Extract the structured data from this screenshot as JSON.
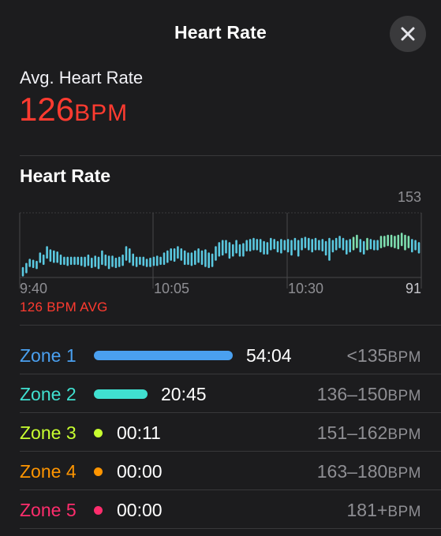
{
  "header": {
    "title": "Heart Rate",
    "close_icon": "close-icon"
  },
  "summary": {
    "avg_label": "Avg. Heart Rate",
    "avg_value": "126",
    "avg_unit": "BPM",
    "accent_color": "#ff3b30"
  },
  "chart_section": {
    "title": "Heart Rate",
    "avg_note": "126 BPM AVG"
  },
  "chart_data": {
    "type": "bar",
    "title": "",
    "xlabel": "",
    "ylabel": "",
    "ylim": [
      91,
      153
    ],
    "y_tick_labels": [
      "153",
      "91"
    ],
    "x_tick_labels": [
      "9:40",
      "10:05",
      "10:30"
    ],
    "grid": true,
    "series": [
      {
        "color": "#5ac8e0",
        "ranges": [
          [
            93,
            100
          ],
          [
            96,
            104
          ],
          [
            102,
            108
          ],
          [
            101,
            107
          ],
          [
            100,
            106
          ],
          [
            106,
            114
          ],
          [
            104,
            112
          ],
          [
            110,
            120
          ],
          [
            107,
            117
          ],
          [
            106,
            116
          ],
          [
            106,
            115
          ],
          [
            104,
            112
          ],
          [
            104,
            110
          ],
          [
            103,
            110
          ],
          [
            104,
            110
          ],
          [
            104,
            110
          ],
          [
            104,
            110
          ],
          [
            103,
            110
          ],
          [
            102,
            110
          ],
          [
            103,
            112
          ],
          [
            101,
            109
          ],
          [
            102,
            111
          ],
          [
            100,
            110
          ],
          [
            104,
            116
          ],
          [
            103,
            112
          ],
          [
            100,
            111
          ],
          [
            102,
            111
          ],
          [
            101,
            109
          ],
          [
            102,
            110
          ],
          [
            103,
            112
          ],
          [
            108,
            120
          ],
          [
            106,
            118
          ],
          [
            103,
            113
          ],
          [
            102,
            110
          ],
          [
            104,
            110
          ],
          [
            103,
            110
          ],
          [
            102,
            108
          ],
          [
            102,
            109
          ],
          [
            103,
            110
          ],
          [
            103,
            111
          ],
          [
            104,
            110
          ],
          [
            104,
            114
          ],
          [
            106,
            116
          ],
          [
            108,
            118
          ],
          [
            107,
            118
          ],
          [
            110,
            120
          ],
          [
            108,
            118
          ],
          [
            104,
            116
          ],
          [
            104,
            114
          ],
          [
            103,
            114
          ],
          [
            104,
            116
          ],
          [
            106,
            118
          ],
          [
            104,
            116
          ],
          [
            102,
            117
          ],
          [
            101,
            114
          ],
          [
            102,
            113
          ],
          [
            108,
            120
          ],
          [
            112,
            124
          ],
          [
            113,
            126
          ],
          [
            115,
            126
          ],
          [
            110,
            124
          ],
          [
            112,
            122
          ],
          [
            115,
            126
          ],
          [
            112,
            122
          ],
          [
            112,
            123
          ],
          [
            117,
            126
          ],
          [
            117,
            127
          ],
          [
            118,
            128
          ],
          [
            118,
            127
          ],
          [
            116,
            127
          ],
          [
            114,
            125
          ],
          [
            114,
            124
          ],
          [
            118,
            128
          ],
          [
            119,
            127
          ],
          [
            116,
            125
          ],
          [
            115,
            127
          ],
          [
            118,
            126
          ],
          [
            116,
            127
          ],
          [
            113,
            126
          ],
          [
            118,
            128
          ],
          [
            112,
            126
          ],
          [
            118,
            128
          ],
          [
            120,
            129
          ],
          [
            118,
            128
          ],
          [
            116,
            127
          ],
          [
            118,
            128
          ],
          [
            118,
            126
          ],
          [
            117,
            127
          ],
          [
            113,
            125
          ],
          [
            108,
            128
          ],
          [
            116,
            126
          ],
          [
            118,
            128
          ],
          [
            120,
            130
          ],
          [
            118,
            128
          ],
          [
            114,
            126
          ],
          [
            116,
            127
          ],
          [
            118,
            129
          ],
          [
            120,
            131
          ],
          [
            116,
            127
          ],
          [
            114,
            125
          ],
          [
            118,
            128
          ],
          [
            119,
            127
          ],
          [
            118,
            126
          ],
          [
            118,
            126
          ],
          [
            120,
            130
          ],
          [
            121,
            130
          ],
          [
            122,
            131
          ],
          [
            121,
            131
          ],
          [
            120,
            130
          ],
          [
            119,
            131
          ],
          [
            122,
            133
          ],
          [
            118,
            131
          ],
          [
            120,
            130
          ],
          [
            116,
            127
          ],
          [
            118,
            126
          ],
          [
            115,
            124
          ]
        ]
      }
    ]
  },
  "zones": [
    {
      "name": "Zone 1",
      "time": "54:04",
      "range": "<135",
      "unit": "BPM",
      "color": "#4aa0f0",
      "fraction": 0.7216
    },
    {
      "name": "Zone 2",
      "time": "20:45",
      "range": "136–150",
      "unit": "BPM",
      "color": "#40e0d0",
      "fraction": 0.2769
    },
    {
      "name": "Zone 3",
      "time": "00:11",
      "range": "151–162",
      "unit": "BPM",
      "color": "#c8ff30",
      "fraction": 0.0024
    },
    {
      "name": "Zone 4",
      "time": "00:00",
      "range": "163–180",
      "unit": "BPM",
      "color": "#ff9500",
      "fraction": 0.0
    },
    {
      "name": "Zone 5",
      "time": "00:00",
      "range": "181+",
      "unit": "BPM",
      "color": "#ff2d6d",
      "fraction": 0.0
    }
  ]
}
